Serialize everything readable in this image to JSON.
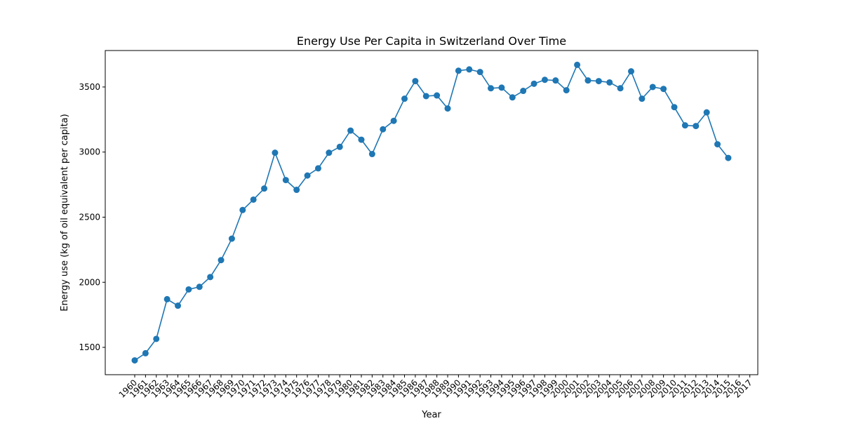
{
  "chart_data": {
    "type": "line",
    "title": "Energy Use Per Capita in Switzerland Over Time",
    "xlabel": "Year",
    "ylabel": "Energy use (kg of oil equivalent per capita)",
    "color": "#1f77b4",
    "marker": "circle",
    "grid": false,
    "legend": "none",
    "xlim": [
      1957.55,
      1968.45
    ],
    "ylim": [
      1290,
      3780
    ],
    "categories": [
      "1960",
      "1961",
      "1962",
      "1963",
      "1964",
      "1965",
      "1966",
      "1967",
      "1968",
      "1969",
      "1970",
      "1971",
      "1972",
      "1973",
      "1974",
      "1975",
      "1976",
      "1977",
      "1978",
      "1979",
      "1980",
      "1981",
      "1982",
      "1983",
      "1984",
      "1985",
      "1986",
      "1987",
      "1988",
      "1989",
      "1990",
      "1991",
      "1992",
      "1993",
      "1994",
      "1995",
      "1996",
      "1997",
      "1998",
      "1999",
      "2000",
      "2001",
      "2002",
      "2003",
      "2004",
      "2005",
      "2006",
      "2007",
      "2008",
      "2009",
      "2010",
      "2011",
      "2012",
      "2013",
      "2014",
      "2015",
      "2016",
      "2017"
    ],
    "y_ticks": [
      1500,
      2000,
      2500,
      3000,
      3500
    ],
    "y_tick_labels": [
      "1500",
      "2000",
      "2500",
      "3000",
      "3500"
    ],
    "values": [
      1400,
      1455,
      1565,
      1870,
      1820,
      1945,
      1965,
      2040,
      2170,
      2335,
      2555,
      2635,
      2720,
      2995,
      2785,
      2710,
      2820,
      2875,
      2995,
      3040,
      3165,
      3095,
      2985,
      3175,
      3240,
      3410,
      3545,
      3430,
      3435,
      3335,
      3625,
      3635,
      3615,
      3490,
      3495,
      3420,
      3470,
      3525,
      3555,
      3550,
      3475,
      3670,
      3550,
      3545,
      3535,
      3490,
      3620,
      3410,
      3500,
      3485,
      3345,
      3205,
      3200,
      3305,
      3060,
      2955,
      null,
      null
    ]
  }
}
